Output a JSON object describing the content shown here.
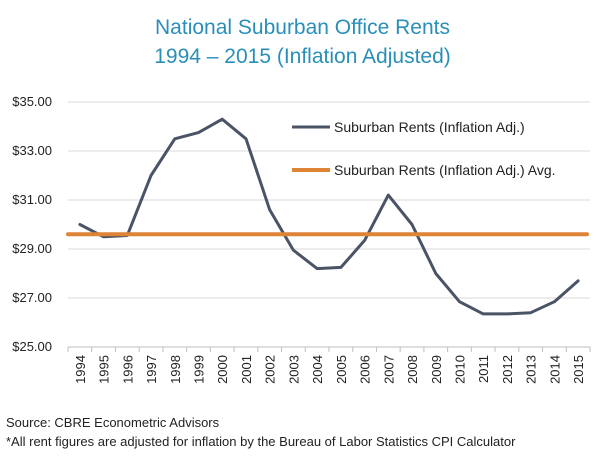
{
  "chart_data": {
    "type": "line",
    "title": "National Suburban Office Rents",
    "subtitle": "1994 – 2015 (Inflation Adjusted)",
    "x": [
      "1994",
      "1995",
      "1996",
      "1997",
      "1998",
      "1999",
      "2000",
      "2001",
      "2002",
      "2003",
      "2004",
      "2005",
      "2006",
      "2007",
      "2008",
      "2009",
      "2010",
      "2011",
      "2012",
      "2013",
      "2014",
      "2015"
    ],
    "yticks": [
      "$25.00",
      "$27.00",
      "$29.00",
      "$31.00",
      "$33.00",
      "$35.00"
    ],
    "ylim": [
      25,
      35
    ],
    "grid": true,
    "legend_position": "top-right",
    "series": [
      {
        "name": "Suburban Rents (Inflation Adj.)",
        "color": "#4a5466",
        "values": [
          30.0,
          29.5,
          29.55,
          32.0,
          33.5,
          33.75,
          34.3,
          33.5,
          30.6,
          28.95,
          28.2,
          28.25,
          29.35,
          31.2,
          30.0,
          28.0,
          26.85,
          26.35,
          26.35,
          26.4,
          26.85,
          27.7
        ]
      },
      {
        "name": "Suburban Rents (Inflation Adj.) Avg.",
        "color": "#de8436",
        "values": [
          29.6,
          29.6,
          29.6,
          29.6,
          29.6,
          29.6,
          29.6,
          29.6,
          29.6,
          29.6,
          29.6,
          29.6,
          29.6,
          29.6,
          29.6,
          29.6,
          29.6,
          29.6,
          29.6,
          29.6,
          29.6,
          29.6
        ]
      }
    ]
  },
  "footer": {
    "source": "Source: CBRE Econometric Advisors",
    "note": "*All rent figures are adjusted for inflation by the Bureau of Labor Statistics CPI Calculator"
  }
}
